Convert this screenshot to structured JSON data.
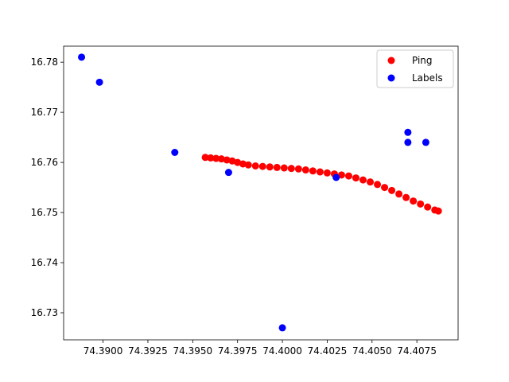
{
  "chart_data": {
    "type": "scatter",
    "title": "",
    "xlabel": "",
    "ylabel": "",
    "xlim": [
      74.3878,
      74.4098
    ],
    "ylim": [
      16.7246,
      16.7832
    ],
    "x_ticks": [
      74.39,
      74.3925,
      74.395,
      74.3975,
      74.4,
      74.4025,
      74.405,
      74.4075
    ],
    "x_tick_labels": [
      "74.3900",
      "74.3925",
      "74.3950",
      "74.3975",
      "74.4000",
      "74.4025",
      "74.4050",
      "74.4075"
    ],
    "y_ticks": [
      16.73,
      16.74,
      16.75,
      16.76,
      16.77,
      16.78
    ],
    "y_tick_labels": [
      "16.73",
      "16.74",
      "16.75",
      "16.76",
      "16.77",
      "16.78"
    ],
    "grid": false,
    "legend_position": "top-right",
    "series": [
      {
        "name": "Ping",
        "color": "#ff0000",
        "points": [
          [
            74.3957,
            16.761
          ],
          [
            74.396,
            16.7609
          ],
          [
            74.3963,
            16.7608
          ],
          [
            74.3966,
            16.7607
          ],
          [
            74.3969,
            16.7605
          ],
          [
            74.3972,
            16.7603
          ],
          [
            74.3975,
            16.76
          ],
          [
            74.3978,
            16.7597
          ],
          [
            74.3981,
            16.7595
          ],
          [
            74.3985,
            16.7593
          ],
          [
            74.3989,
            16.7592
          ],
          [
            74.3993,
            16.7591
          ],
          [
            74.3997,
            16.759
          ],
          [
            74.4001,
            16.7589
          ],
          [
            74.4005,
            16.7588
          ],
          [
            74.4009,
            16.7587
          ],
          [
            74.4013,
            16.7585
          ],
          [
            74.4017,
            16.7583
          ],
          [
            74.4021,
            16.7581
          ],
          [
            74.4025,
            16.7579
          ],
          [
            74.4029,
            16.7577
          ],
          [
            74.4033,
            16.7575
          ],
          [
            74.4037,
            16.7573
          ],
          [
            74.4041,
            16.7569
          ],
          [
            74.4045,
            16.7565
          ],
          [
            74.4049,
            16.7561
          ],
          [
            74.4053,
            16.7556
          ],
          [
            74.4057,
            16.755
          ],
          [
            74.4061,
            16.7544
          ],
          [
            74.4065,
            16.7537
          ],
          [
            74.4069,
            16.753
          ],
          [
            74.4073,
            16.7523
          ],
          [
            74.4077,
            16.7517
          ],
          [
            74.4081,
            16.7511
          ],
          [
            74.4085,
            16.7505
          ],
          [
            74.4087,
            16.7503
          ]
        ]
      },
      {
        "name": "Labels",
        "color": "#0000ff",
        "points": [
          [
            74.3888,
            16.781
          ],
          [
            74.3898,
            16.776
          ],
          [
            74.394,
            16.762
          ],
          [
            74.397,
            16.758
          ],
          [
            74.4,
            16.727
          ],
          [
            74.403,
            16.757
          ],
          [
            74.407,
            16.766
          ],
          [
            74.407,
            16.764
          ],
          [
            74.408,
            16.764
          ]
        ]
      }
    ]
  }
}
